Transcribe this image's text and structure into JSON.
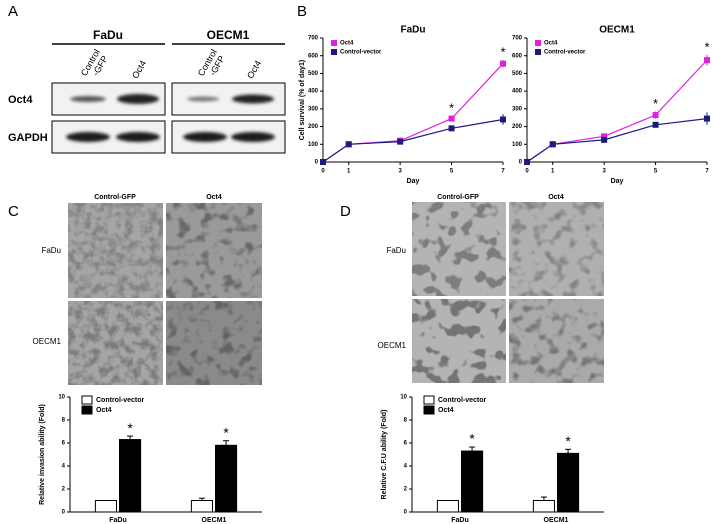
{
  "panel_labels": [
    "A",
    "B",
    "C",
    "D"
  ],
  "blot": {
    "groups": [
      {
        "name": "FaDu",
        "lanes": [
          [
            "Control",
            "-GFP"
          ],
          [
            "Oct4"
          ]
        ]
      },
      {
        "name": "OECM1",
        "lanes": [
          [
            "Control",
            "-GFP"
          ],
          [
            "Oct4"
          ]
        ]
      }
    ],
    "rows": [
      "Oct4",
      "GAPDH"
    ]
  },
  "micrographs": [
    {
      "columns": [
        "Control-GFP",
        "Oct4"
      ],
      "rows": [
        "FaDu",
        "OECM1"
      ]
    },
    {
      "columns": [
        "Control-GFP",
        "Oct4"
      ],
      "rows": [
        "FaDu",
        "OECM1"
      ]
    }
  ],
  "chart_data": [
    {
      "type": "line",
      "title": "FaDu",
      "xlabel": "Day",
      "ylabel": "Cell survival (% of day1)",
      "x": [
        0,
        1,
        3,
        5,
        7
      ],
      "xlim": [
        0,
        7
      ],
      "xticks": [
        0,
        1,
        3,
        5,
        7
      ],
      "ylim": [
        0,
        700
      ],
      "yticks": [
        0,
        100,
        200,
        300,
        400,
        500,
        600,
        700
      ],
      "series": [
        {
          "name": "Oct4",
          "color": "#e020e0",
          "values": [
            0,
            100,
            120,
            245,
            555
          ],
          "errors": [
            3,
            8,
            18,
            15,
            20
          ]
        },
        {
          "name": "Control-vector",
          "color": "#1c1c80",
          "values": [
            0,
            100,
            115,
            190,
            240
          ],
          "errors": [
            3,
            8,
            15,
            12,
            30
          ]
        }
      ],
      "annotations": [
        {
          "x": 5,
          "text": "*"
        },
        {
          "x": 7,
          "text": "*"
        }
      ]
    },
    {
      "type": "line",
      "title": "OECM1",
      "xlabel": "Day",
      "x": [
        0,
        1,
        3,
        5,
        7
      ],
      "xlim": [
        0,
        7
      ],
      "xticks": [
        0,
        1,
        3,
        5,
        7
      ],
      "ylim": [
        0,
        700
      ],
      "yticks": [
        0,
        100,
        200,
        300,
        400,
        500,
        600,
        700
      ],
      "series": [
        {
          "name": "Oct4",
          "color": "#e020e0",
          "values": [
            0,
            100,
            145,
            265,
            575
          ],
          "errors": [
            3,
            8,
            15,
            20,
            30
          ]
        },
        {
          "name": "Control-vector",
          "color": "#1c1c80",
          "values": [
            0,
            100,
            125,
            210,
            245
          ],
          "errors": [
            3,
            8,
            10,
            15,
            35
          ]
        }
      ],
      "annotations": [
        {
          "x": 5,
          "text": "*"
        },
        {
          "x": 7,
          "text": "*"
        }
      ]
    },
    {
      "type": "bar",
      "ylabel": "Relative invasion ability (Fold)",
      "categories": [
        "FaDu",
        "OECM1"
      ],
      "ylim": [
        0,
        10
      ],
      "yticks": [
        0,
        2,
        4,
        6,
        8,
        10
      ],
      "series": [
        {
          "name": "Control-vector",
          "color": "#ffffff",
          "values": [
            1,
            1
          ],
          "errors": [
            0,
            0.2
          ]
        },
        {
          "name": "Oct4",
          "color": "#000000",
          "values": [
            6.3,
            5.8
          ],
          "errors": [
            0.3,
            0.4
          ]
        }
      ],
      "annotations": [
        {
          "x": "FaDu",
          "text": "*"
        },
        {
          "x": "OECM1",
          "text": "*"
        }
      ]
    },
    {
      "type": "bar",
      "ylabel": "Relative C.F.U ability (Fold)",
      "categories": [
        "FaDu",
        "OECM1"
      ],
      "ylim": [
        0,
        10
      ],
      "yticks": [
        0,
        2,
        4,
        6,
        8,
        10
      ],
      "series": [
        {
          "name": "Control-vector",
          "color": "#ffffff",
          "values": [
            1,
            1
          ],
          "errors": [
            0,
            0.3
          ]
        },
        {
          "name": "Oct4",
          "color": "#000000",
          "values": [
            5.3,
            5.1
          ],
          "errors": [
            0.35,
            0.35
          ]
        }
      ],
      "annotations": [
        {
          "x": "FaDu",
          "text": "*"
        },
        {
          "x": "OECM1",
          "text": "*"
        }
      ]
    }
  ]
}
